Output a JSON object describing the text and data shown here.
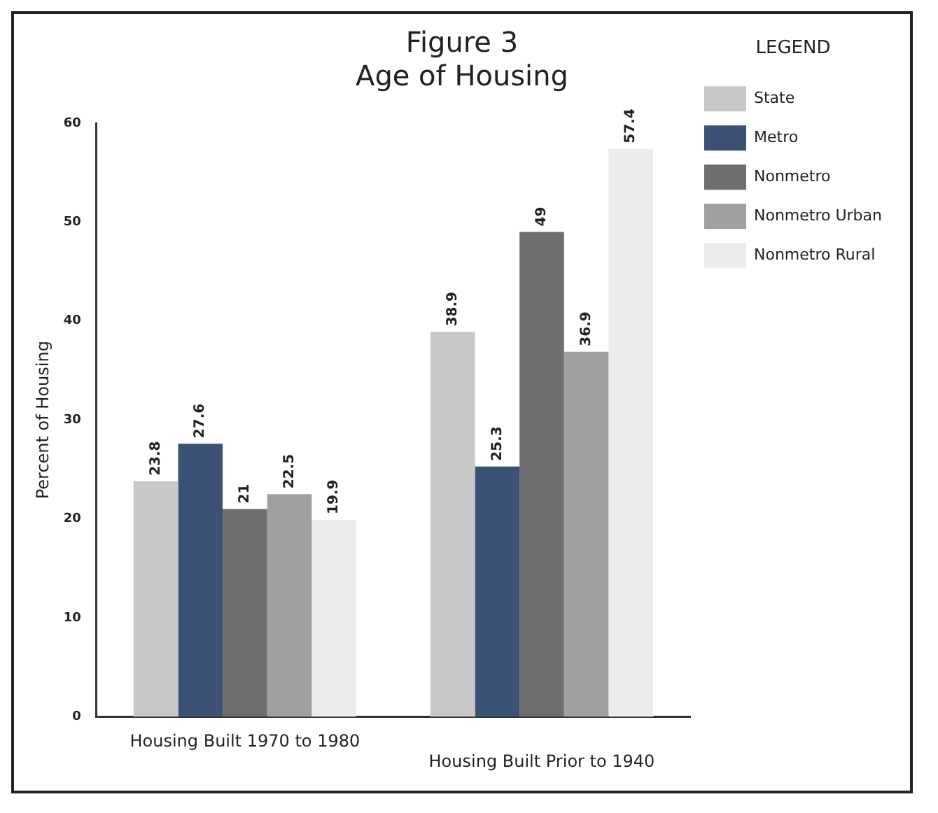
{
  "chart_data": {
    "type": "bar",
    "title": "Figure 3",
    "subtitle": "Age of Housing",
    "ylabel": "Percent of Housing",
    "legend_title": "LEGEND",
    "categories": [
      "Housing Built 1970 to 1980",
      "Housing Built Prior to 1940"
    ],
    "series": [
      {
        "name": "State",
        "color": "#c8c8c8",
        "values": [
          23.8,
          38.9
        ]
      },
      {
        "name": "Metro",
        "color": "#3b5275",
        "values": [
          27.6,
          25.3
        ]
      },
      {
        "name": "Nonmetro",
        "color": "#6e6e6e",
        "values": [
          21,
          49
        ]
      },
      {
        "name": "Nonmetro Urban",
        "color": "#a0a0a0",
        "values": [
          22.5,
          36.9
        ]
      },
      {
        "name": "Nonmetro Rural",
        "color": "#ececec",
        "values": [
          19.9,
          57.4
        ]
      }
    ],
    "ylim": [
      0,
      60
    ],
    "yticks": [
      0,
      10,
      20,
      30,
      40,
      50,
      60
    ],
    "grid": false,
    "legend": "right",
    "data_labels": true
  }
}
